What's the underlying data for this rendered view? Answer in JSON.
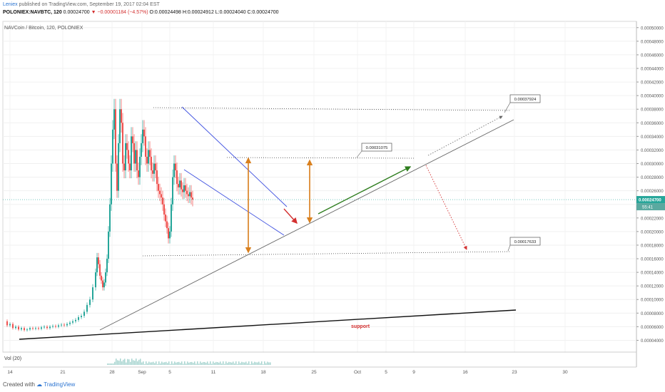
{
  "header": {
    "author": "Leniex",
    "published_text": "published on TradingView.com, September 19, 2017 02:04 EST",
    "symbol": "POLONIEX:NAVBTC, 120",
    "last": "0.00024700",
    "change": "▼ −0.00001184 (−4.57%)",
    "ohlc": "O:0.00024498 H:0.00024912 L:0.00024040 C:0.00024700"
  },
  "chart_title": "NAVCoin / Bitcoin, 120, POLONIEX",
  "volume_label": "Vol (20)",
  "footer": {
    "created_with": "Created with",
    "brand": "TradingView"
  },
  "colors": {
    "candle_up": "#26a69a",
    "candle_down": "#ef5350",
    "channel": "#3f51e0",
    "arrow_orange": "#d9801f",
    "arrow_green": "#2e7d1e",
    "arrow_red": "#d32f2f",
    "price_tag": "#26a69a"
  },
  "chart_data": {
    "type": "candlestick",
    "x_ticks": [
      "14",
      "21",
      "28",
      "Sep",
      "5",
      "11",
      "18",
      "25",
      "Oct",
      "5",
      "9",
      "16",
      "23",
      "30"
    ],
    "y_ticks": [
      "0.00050000",
      "0.00048000",
      "0.00046000",
      "0.00044000",
      "0.00042000",
      "0.00040000",
      "0.00038000",
      "0.00036000",
      "0.00034000",
      "0.00032000",
      "0.00030000",
      "0.00028000",
      "0.00026000",
      "0.00024000",
      "0.00022000",
      "0.00020000",
      "0.00018000",
      "0.00016000",
      "0.00014000",
      "0.00012000",
      "0.00010000",
      "0.00008000",
      "0.00006000",
      "0.00004000"
    ],
    "ylim": [
      3e-05,
      0.000505
    ],
    "last_price": "0.00024700",
    "countdown": "55:41",
    "annotations": {
      "top_level": "0.00037924",
      "mid_level": "0.00031075",
      "bottom_level": "0.00017633",
      "support_label": "support"
    },
    "price_path": [
      [
        0,
        6.8e-05
      ],
      [
        4,
        6.2e-05
      ],
      [
        8,
        6.4e-05
      ],
      [
        12,
        5.8e-05
      ],
      [
        16,
        6e-05
      ],
      [
        20,
        5.6e-05
      ],
      [
        24,
        5.8e-05
      ],
      [
        28,
        5.5e-05
      ],
      [
        32,
        5.6e-05
      ],
      [
        36,
        5.8e-05
      ],
      [
        40,
        5.7e-05
      ],
      [
        44,
        5.8e-05
      ],
      [
        48,
        5.7e-05
      ],
      [
        52,
        5.9e-05
      ],
      [
        56,
        6e-05
      ],
      [
        60,
        5.8e-05
      ],
      [
        64,
        6e-05
      ],
      [
        68,
        6.1e-05
      ],
      [
        72,
        6e-05
      ],
      [
        76,
        6.2e-05
      ],
      [
        80,
        6.3e-05
      ],
      [
        84,
        6.2e-05
      ],
      [
        88,
        6.4e-05
      ],
      [
        92,
        6.6e-05
      ],
      [
        96,
        6.8e-05
      ],
      [
        100,
        7e-05
      ],
      [
        104,
        7.4e-05
      ],
      [
        108,
        7.6e-05
      ],
      [
        112,
        8.2e-05
      ],
      [
        116,
        9.2e-05
      ],
      [
        120,
        0.0001
      ],
      [
        124,
        0.000118
      ],
      [
        128,
        0.00014
      ],
      [
        130,
        0.000162
      ],
      [
        132,
        0.000152
      ],
      [
        134,
        0.000135
      ],
      [
        136,
        0.000128
      ],
      [
        138,
        0.000118
      ],
      [
        140,
        0.000125
      ],
      [
        142,
        0.00014
      ],
      [
        144,
        0.00016
      ],
      [
        146,
        0.0002
      ],
      [
        148,
        0.00024
      ],
      [
        150,
        0.0003
      ],
      [
        152,
        0.00035
      ],
      [
        154,
        0.00038
      ],
      [
        156,
        0.0003
      ],
      [
        158,
        0.00026
      ],
      [
        160,
        0.00033
      ],
      [
        162,
        0.00038
      ],
      [
        164,
        0.00036
      ],
      [
        166,
        0.0003
      ],
      [
        168,
        0.00029
      ],
      [
        170,
        0.00033
      ],
      [
        172,
        0.00032
      ],
      [
        174,
        0.0003
      ],
      [
        176,
        0.00029
      ],
      [
        178,
        0.00034
      ],
      [
        180,
        0.00033
      ],
      [
        182,
        0.0003
      ],
      [
        184,
        0.00032
      ],
      [
        186,
        0.00029
      ],
      [
        188,
        0.00028
      ],
      [
        190,
        0.00031
      ],
      [
        192,
        0.00033
      ],
      [
        194,
        0.00035
      ],
      [
        196,
        0.00034
      ],
      [
        198,
        0.00031
      ],
      [
        200,
        0.0003
      ],
      [
        202,
        0.00032
      ],
      [
        204,
        0.00031
      ],
      [
        206,
        0.00029
      ],
      [
        208,
        0.000285
      ],
      [
        210,
        0.0003
      ],
      [
        212,
        0.00029
      ],
      [
        214,
        0.00027
      ],
      [
        216,
        0.00026
      ],
      [
        218,
        0.000255
      ],
      [
        220,
        0.00025
      ],
      [
        222,
        0.00024
      ],
      [
        224,
        0.000225
      ],
      [
        226,
        0.000215
      ],
      [
        228,
        0.000205
      ],
      [
        230,
        0.00019
      ],
      [
        232,
        0.0002
      ],
      [
        234,
        0.00024
      ],
      [
        236,
        0.00028
      ],
      [
        238,
        0.0003
      ],
      [
        240,
        0.00029
      ],
      [
        242,
        0.00027
      ],
      [
        244,
        0.000265
      ],
      [
        246,
        0.000275
      ],
      [
        248,
        0.000262
      ],
      [
        250,
        0.000258
      ],
      [
        252,
        0.000268
      ],
      [
        254,
        0.00026
      ],
      [
        256,
        0.000255
      ],
      [
        258,
        0.000252
      ],
      [
        260,
        0.000258
      ],
      [
        262,
        0.00025
      ],
      [
        264,
        0.000247
      ]
    ]
  }
}
